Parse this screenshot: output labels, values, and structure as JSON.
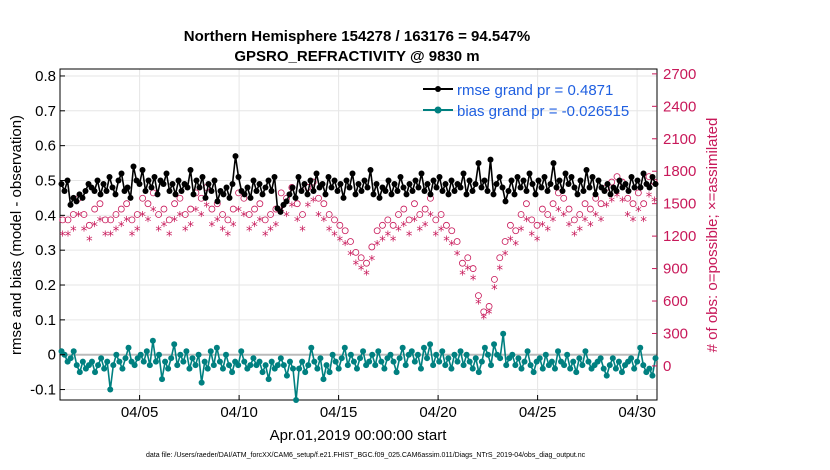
{
  "chart_data": {
    "type": "line",
    "title_line1": "Northern Hemisphere 154278 / 163176 = 94.547%",
    "title_line2": "GPSRO_REFRACTIVITY @ 9830 m",
    "xlabel": "Apr.01,2019 00:00:00 start",
    "ylabel": "rmse and bias (model - observation)",
    "ylabel_right": "# of obs: o=possible; ×=assimilated",
    "xlim": [
      1.0,
      31.0
    ],
    "ylim": [
      -0.13,
      0.82
    ],
    "ylim_right": [
      -315,
      2745
    ],
    "x_ticks": [
      {
        "value": 5,
        "label": "04/05"
      },
      {
        "value": 10,
        "label": "04/10"
      },
      {
        "value": 15,
        "label": "04/15"
      },
      {
        "value": 20,
        "label": "04/20"
      },
      {
        "value": 25,
        "label": "04/25"
      },
      {
        "value": 30,
        "label": "04/30"
      }
    ],
    "y_ticks": [
      -0.1,
      0,
      0.1,
      0.2,
      0.3,
      0.4,
      0.5,
      0.6,
      0.7,
      0.8
    ],
    "y_tick_labels": [
      "-0.1",
      "0",
      "0.1",
      "0.2",
      "0.3",
      "0.4",
      "0.5",
      "0.6",
      "0.7",
      "0.8"
    ],
    "y_ticks_right": [
      0,
      300,
      600,
      900,
      1200,
      1500,
      1800,
      2100,
      2400,
      2700
    ],
    "y_tick_labels_right": [
      "0",
      "300",
      "600",
      "900",
      "1200",
      "1500",
      "1800",
      "2100",
      "2400",
      "2700"
    ],
    "legend": [
      {
        "label": "rmse grand pr = 0.4871",
        "color": "#000000"
      },
      {
        "label": "bias grand pr = -0.026515",
        "color": "#008080"
      }
    ],
    "series": [
      {
        "name": "rmse",
        "color": "#000000",
        "values": [
          0.49,
          0.47,
          0.5,
          0.43,
          0.45,
          0.44,
          0.46,
          0.45,
          0.47,
          0.49,
          0.48,
          0.47,
          0.5,
          0.46,
          0.49,
          0.47,
          0.51,
          0.48,
          0.46,
          0.5,
          0.52,
          0.47,
          0.48,
          0.45,
          0.54,
          0.5,
          0.49,
          0.53,
          0.47,
          0.5,
          0.48,
          0.51,
          0.46,
          0.5,
          0.49,
          0.52,
          0.47,
          0.49,
          0.46,
          0.5,
          0.47,
          0.49,
          0.48,
          0.53,
          0.46,
          0.5,
          0.48,
          0.51,
          0.45,
          0.49,
          0.47,
          0.5,
          0.44,
          0.47,
          0.46,
          0.48,
          0.45,
          0.49,
          0.57,
          0.51,
          0.47,
          0.46,
          0.48,
          0.45,
          0.5,
          0.47,
          0.49,
          0.46,
          0.48,
          0.5,
          0.47,
          0.51,
          0.42,
          0.41,
          0.43,
          0.44,
          0.46,
          0.48,
          0.45,
          0.51,
          0.47,
          0.49,
          0.46,
          0.5,
          0.47,
          0.52,
          0.48,
          0.49,
          0.46,
          0.51,
          0.48,
          0.5,
          0.47,
          0.49,
          0.45,
          0.5,
          0.48,
          0.52,
          0.46,
          0.49,
          0.47,
          0.5,
          0.48,
          0.53,
          0.46,
          0.49,
          0.45,
          0.48,
          0.47,
          0.5,
          0.46,
          0.49,
          0.47,
          0.51,
          0.48,
          0.46,
          0.49,
          0.47,
          0.5,
          0.48,
          0.52,
          0.47,
          0.49,
          0.46,
          0.5,
          0.48,
          0.51,
          0.47,
          0.49,
          0.46,
          0.5,
          0.47,
          0.49,
          0.48,
          0.52,
          0.46,
          0.5,
          0.47,
          0.49,
          0.55,
          0.48,
          0.5,
          0.47,
          0.56,
          0.46,
          0.49,
          0.51,
          0.48,
          0.44,
          0.47,
          0.5,
          0.46,
          0.51,
          0.48,
          0.5,
          0.47,
          0.52,
          0.49,
          0.46,
          0.5,
          0.48,
          0.51,
          0.47,
          0.49,
          0.55,
          0.48,
          0.5,
          0.47,
          0.52,
          0.49,
          0.51,
          0.48,
          0.46,
          0.5,
          0.47,
          0.53,
          0.48,
          0.51,
          0.46,
          0.5,
          0.48,
          0.47,
          0.49,
          0.46,
          0.48,
          0.47,
          0.5,
          0.48,
          0.49,
          0.47,
          0.51,
          0.48,
          0.5,
          0.48,
          0.52,
          0.49,
          0.48,
          0.51,
          0.49
        ]
      },
      {
        "name": "bias",
        "color": "#008080",
        "values": [
          0.01,
          0.0,
          -0.02,
          -0.01,
          0.01,
          -0.03,
          -0.05,
          -0.02,
          -0.04,
          -0.03,
          -0.02,
          -0.05,
          -0.03,
          -0.01,
          -0.04,
          -0.02,
          -0.1,
          -0.03,
          0.0,
          -0.02,
          -0.04,
          -0.01,
          0.02,
          -0.02,
          -0.03,
          -0.01,
          0.0,
          -0.02,
          0.01,
          -0.03,
          0.04,
          -0.02,
          0.0,
          -0.07,
          -0.02,
          -0.04,
          -0.01,
          0.03,
          -0.03,
          0.0,
          -0.02,
          0.01,
          -0.04,
          -0.01,
          -0.03,
          0.0,
          -0.08,
          -0.02,
          -0.04,
          0.01,
          -0.03,
          0.02,
          -0.02,
          -0.04,
          0.0,
          -0.03,
          -0.05,
          -0.02,
          -0.03,
          0.01,
          -0.02,
          -0.04,
          -0.03,
          -0.01,
          -0.03,
          -0.02,
          -0.05,
          -0.03,
          -0.07,
          -0.02,
          -0.04,
          -0.03,
          -0.01,
          -0.03,
          -0.06,
          -0.02,
          -0.04,
          -0.13,
          -0.04,
          -0.02,
          -0.05,
          -0.03,
          0.02,
          -0.02,
          -0.04,
          -0.01,
          -0.07,
          -0.03,
          -0.05,
          0.0,
          -0.02,
          -0.04,
          -0.01,
          0.02,
          -0.03,
          0.0,
          -0.02,
          -0.04,
          -0.01,
          0.01,
          -0.03,
          -0.02,
          0.0,
          -0.03,
          0.01,
          -0.02,
          -0.04,
          -0.01,
          0.0,
          -0.02,
          -0.05,
          -0.01,
          0.02,
          -0.03,
          0.0,
          0.01,
          -0.02,
          0.0,
          -0.04,
          0.02,
          -0.01,
          0.03,
          -0.03,
          0.0,
          -0.02,
          0.01,
          -0.03,
          -0.01,
          -0.04,
          0.0,
          -0.02,
          0.01,
          -0.03,
          0.0,
          -0.02,
          -0.04,
          -0.01,
          -0.05,
          -0.02,
          0.02,
          0.0,
          -0.03,
          0.03,
          0.0,
          -0.01,
          0.06,
          -0.03,
          -0.01,
          0.0,
          -0.03,
          -0.01,
          -0.04,
          -0.02,
          0.01,
          -0.03,
          -0.05,
          -0.02,
          -0.01,
          -0.04,
          0.0,
          -0.03,
          -0.02,
          -0.04,
          0.01,
          -0.02,
          -0.03,
          0.0,
          -0.04,
          -0.02,
          -0.05,
          -0.01,
          -0.03,
          0.01,
          -0.02,
          -0.04,
          -0.03,
          -0.02,
          -0.01,
          -0.04,
          -0.06,
          -0.03,
          -0.01,
          -0.04,
          -0.02,
          -0.05,
          -0.03,
          -0.02,
          -0.01,
          -0.04,
          -0.02,
          0.02,
          -0.03,
          -0.05,
          -0.04,
          -0.06,
          -0.01
        ]
      }
    ],
    "obs_possible_color": "#c8195a",
    "obs_possible": [
      1350,
      1350,
      1400,
      1550,
      1400,
      1300,
      1450,
      1500,
      1350,
      1350,
      1400,
      1450,
      1500,
      1350,
      1400,
      1550,
      1500,
      1600,
      1400,
      1450,
      1350,
      1500,
      1550,
      1400,
      1450,
      1600,
      1550,
      1650,
      1450,
      1500,
      1400,
      1350,
      1450,
      1600,
      1550,
      1400,
      1450,
      1500,
      1350,
      1400,
      1450,
      1600,
      1550,
      1650,
      1500,
      1400,
      1650,
      1700,
      1550,
      1500,
      1400,
      1350,
      1300,
      1250,
      1150,
      1050,
      1000,
      950,
      1100,
      1250,
      1300,
      1350,
      1300,
      1400,
      1450,
      1350,
      1500,
      1400,
      1450,
      1550,
      1350,
      1400,
      1300,
      1250,
      1150,
      950,
      1000,
      900,
      650,
      500,
      550,
      800,
      1000,
      1150,
      1300,
      1250,
      1400,
      1500,
      1350,
      1300,
      1450,
      1400,
      1500,
      1600,
      1550,
      1450,
      1350,
      1400,
      1500,
      1450,
      1550,
      1500,
      1650,
      1700,
      1750,
      1700,
      1550,
      1500,
      1600,
      1500,
      1750,
      1700
    ]
  },
  "footer": "data file: /Users/raeder/DAI/ATM_forcXX/CAM6_setup/f.e21.FHIST_BGC.f09_025.CAM6assim.011/Diags_NTrS_2019-04/obs_diag_output.nc"
}
